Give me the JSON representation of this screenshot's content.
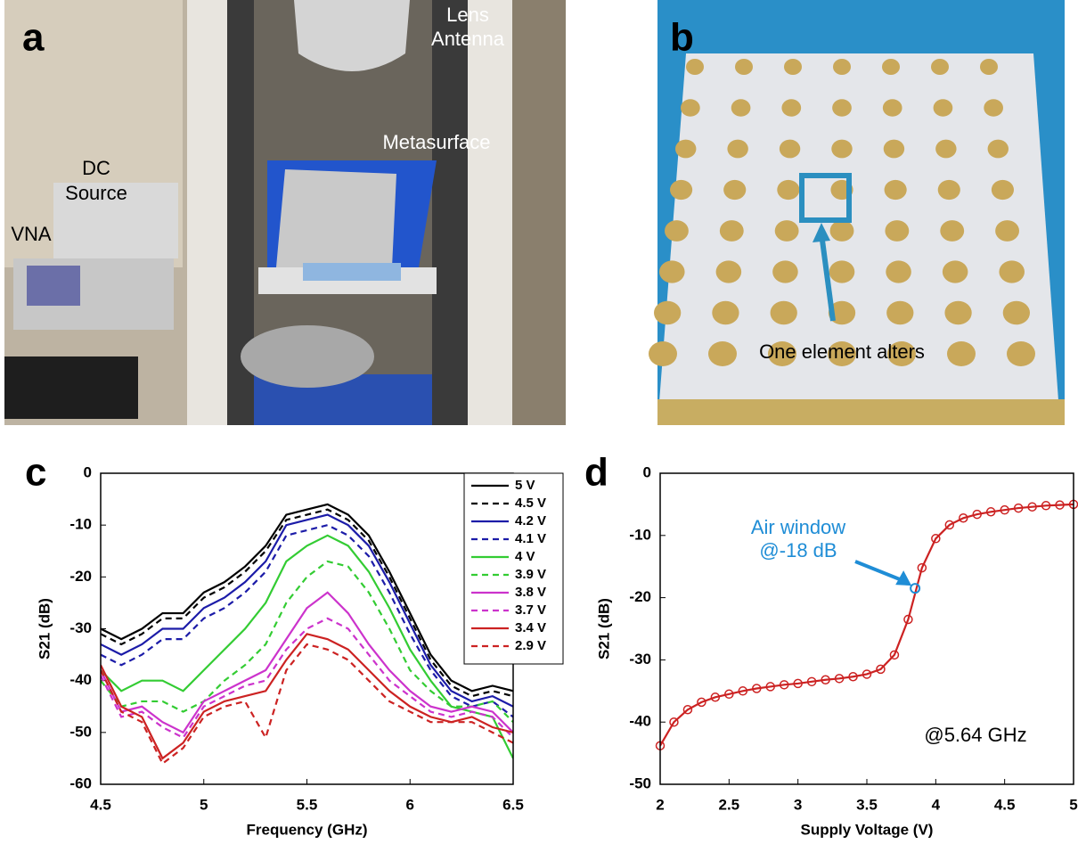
{
  "photos": [
    {
      "panel_label": "a",
      "labels": [
        "Lens",
        "Antenna",
        "Metasurface",
        "DC",
        "Source",
        "VNA"
      ]
    },
    {
      "panel_label": "b",
      "labels": [
        "One element alters"
      ]
    }
  ],
  "chart_data": [
    {
      "type": "line",
      "panel_label": "c",
      "xlabel": "Frequency (GHz)",
      "ylabel": "S21 (dB)",
      "x": [
        4.5,
        4.6,
        4.7,
        4.8,
        4.9,
        5.0,
        5.1,
        5.2,
        5.3,
        5.4,
        5.5,
        5.6,
        5.7,
        5.8,
        5.9,
        6.0,
        6.1,
        6.2,
        6.3,
        6.4,
        6.5
      ],
      "xlim": [
        4.5,
        6.5
      ],
      "xticks": [
        4.5,
        5,
        5.5,
        6,
        6.5
      ],
      "ylim": [
        -60,
        0
      ],
      "yticks": [
        0,
        -10,
        -20,
        -30,
        -40,
        -50,
        -60
      ],
      "legend": "upper right",
      "series": [
        {
          "name": "5 V",
          "color": "#000000",
          "dashed": false,
          "values": [
            -30,
            -32,
            -30,
            -27,
            -27,
            -23,
            -21,
            -18,
            -14,
            -8,
            -7,
            -6,
            -8,
            -12,
            -19,
            -27,
            -35,
            -40,
            -42,
            -41,
            -42
          ]
        },
        {
          "name": "4.5 V",
          "color": "#000000",
          "dashed": true,
          "values": [
            -31,
            -33,
            -31,
            -28,
            -28,
            -24,
            -22,
            -19,
            -15,
            -9,
            -8,
            -7,
            -9,
            -13,
            -20,
            -28,
            -36,
            -41,
            -43,
            -42,
            -43
          ]
        },
        {
          "name": "4.2 V",
          "color": "#1c1ca8",
          "dashed": false,
          "values": [
            -33,
            -35,
            -33,
            -30,
            -30,
            -26,
            -24,
            -21,
            -17,
            -10,
            -9,
            -8,
            -10,
            -14,
            -21,
            -29,
            -37,
            -42,
            -44,
            -43,
            -45
          ]
        },
        {
          "name": "4.1 V",
          "color": "#1c1ca8",
          "dashed": true,
          "values": [
            -35,
            -37,
            -35,
            -32,
            -32,
            -28,
            -26,
            -23,
            -19,
            -12,
            -11,
            -10,
            -12,
            -16,
            -23,
            -31,
            -38,
            -43,
            -45,
            -44,
            -47
          ]
        },
        {
          "name": "4 V",
          "color": "#33cc33",
          "dashed": false,
          "values": [
            -38,
            -42,
            -40,
            -40,
            -42,
            -38,
            -34,
            -30,
            -25,
            -17,
            -14,
            -12,
            -14,
            -19,
            -26,
            -34,
            -40,
            -45,
            -46,
            -47,
            -55
          ]
        },
        {
          "name": "3.9 V",
          "color": "#33cc33",
          "dashed": true,
          "values": [
            -40,
            -45,
            -44,
            -44,
            -46,
            -44,
            -40,
            -37,
            -33,
            -25,
            -20,
            -17,
            -18,
            -23,
            -30,
            -38,
            -42,
            -45,
            -45,
            -44,
            -48
          ]
        },
        {
          "name": "3.8 V",
          "color": "#cc33cc",
          "dashed": false,
          "values": [
            -38,
            -46,
            -45,
            -48,
            -50,
            -44,
            -42,
            -40,
            -38,
            -32,
            -26,
            -23,
            -27,
            -33,
            -38,
            -42,
            -45,
            -46,
            -45,
            -46,
            -50
          ]
        },
        {
          "name": "3.7 V",
          "color": "#cc33cc",
          "dashed": true,
          "values": [
            -39,
            -47,
            -46,
            -49,
            -51,
            -45,
            -43,
            -41,
            -40,
            -34,
            -30,
            -28,
            -30,
            -35,
            -40,
            -43,
            -46,
            -47,
            -46,
            -47,
            -51
          ]
        },
        {
          "name": "3.4 V",
          "color": "#cc2222",
          "dashed": false,
          "values": [
            -37,
            -45,
            -47,
            -55,
            -52,
            -46,
            -44,
            -43,
            -42,
            -36,
            -31,
            -32,
            -34,
            -38,
            -42,
            -45,
            -47,
            -48,
            -47,
            -49,
            -50
          ]
        },
        {
          "name": "2.9 V",
          "color": "#cc2222",
          "dashed": true,
          "values": [
            -38,
            -46,
            -48,
            -56,
            -53,
            -47,
            -45,
            -44,
            -51,
            -38,
            -33,
            -34,
            -36,
            -40,
            -44,
            -46,
            -48,
            -48,
            -48,
            -50,
            -52
          ]
        }
      ]
    },
    {
      "type": "line",
      "panel_label": "d",
      "xlabel": "Supply Voltage (V)",
      "ylabel": "S21 (dB)",
      "x": [
        2.0,
        2.1,
        2.2,
        2.3,
        2.4,
        2.5,
        2.6,
        2.7,
        2.8,
        2.9,
        3.0,
        3.1,
        3.2,
        3.3,
        3.4,
        3.5,
        3.6,
        3.7,
        3.8,
        3.9,
        4.0,
        4.1,
        4.2,
        4.3,
        4.4,
        4.5,
        4.6,
        4.7,
        4.8,
        4.9,
        5.0
      ],
      "xlim": [
        2,
        5
      ],
      "xticks": [
        2,
        2.5,
        3,
        3.5,
        4,
        4.5,
        5
      ],
      "ylim": [
        -50,
        0
      ],
      "yticks": [
        0,
        -10,
        -20,
        -30,
        -40,
        -50
      ],
      "markers": true,
      "series": [
        {
          "color": "#cc2222",
          "dashed": false,
          "values": [
            -43.8,
            -40,
            -38,
            -36.8,
            -36,
            -35.5,
            -35,
            -34.6,
            -34.3,
            -34,
            -33.8,
            -33.5,
            -33.2,
            -33,
            -32.7,
            -32.3,
            -31.5,
            -29.2,
            -23.5,
            -15.2,
            -10.5,
            -8.3,
            -7.2,
            -6.6,
            -6.2,
            -5.9,
            -5.6,
            -5.4,
            -5.2,
            -5.1,
            -5.0
          ]
        }
      ],
      "highlight": {
        "x": 3.85,
        "y": -18.5,
        "color": "#1f8dd6",
        "label": [
          "Air window",
          "@-18 dB"
        ]
      },
      "annotation": "@5.64 GHz"
    }
  ]
}
